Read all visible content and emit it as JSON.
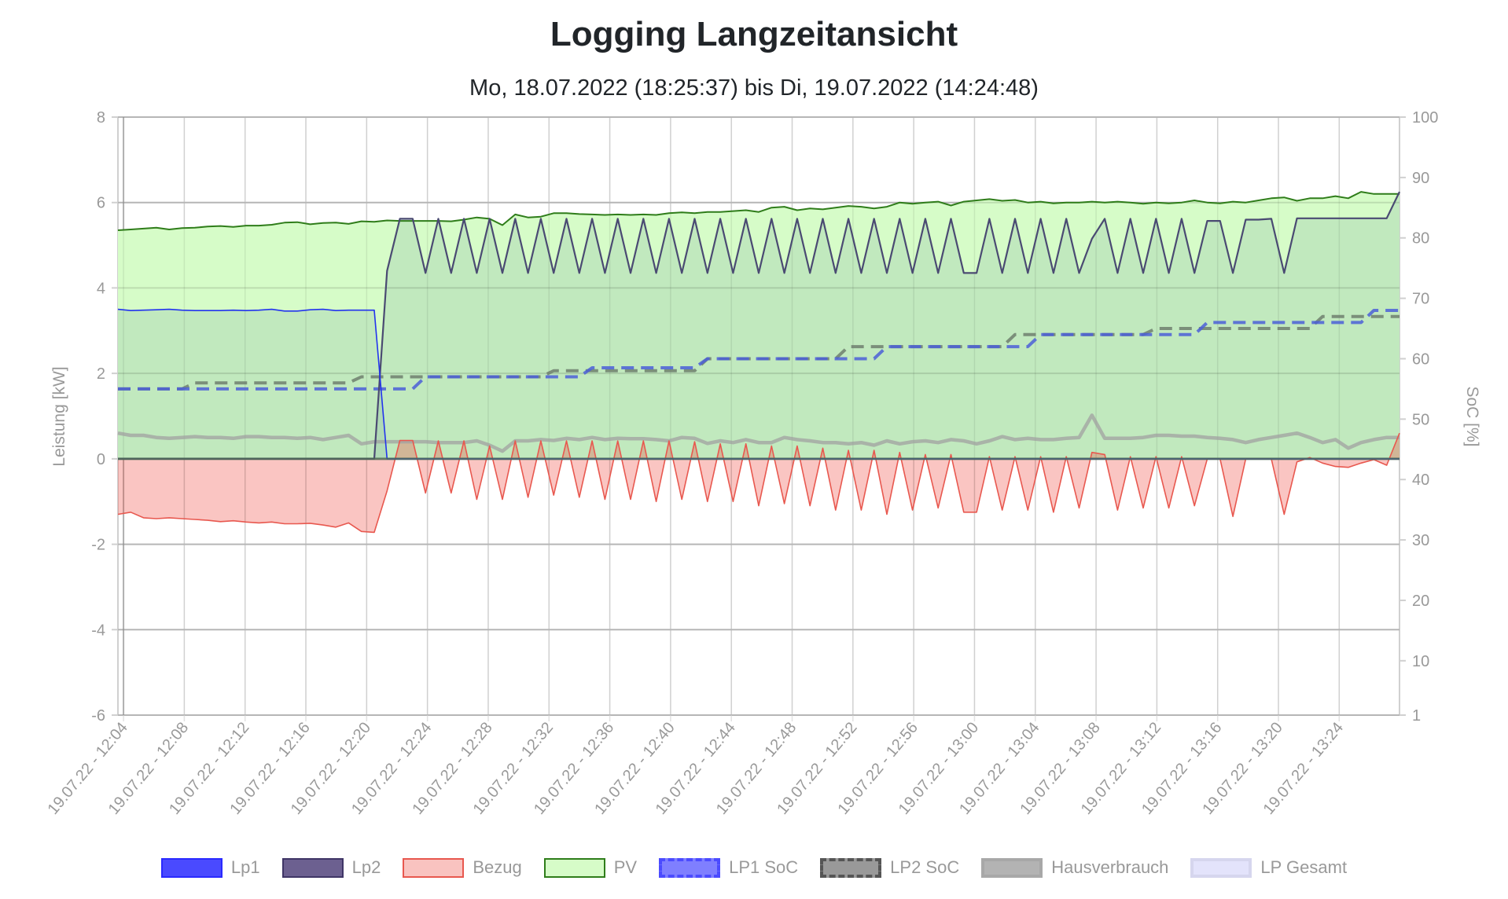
{
  "chart_data": {
    "type": "line",
    "title": "Logging Langzeitansicht",
    "subtitle": "Mo, 18.07.2022 (18:25:37) bis Di, 19.07.2022 (14:24:48)",
    "ylabel_left": "Leistung [kW]",
    "ylabel_right": "SoC [%]",
    "ylim_left": [
      -6,
      8
    ],
    "ylim_right": [
      1,
      100
    ],
    "yticks_left": [
      "8",
      "6",
      "4",
      "2",
      "0",
      "-2",
      "-4",
      "-6"
    ],
    "yticks_right": [
      "100",
      "90",
      "80",
      "70",
      "60",
      "50",
      "40",
      "30",
      "20",
      "10",
      "1"
    ],
    "x_start": "12:03:38",
    "interval_seconds": 50.6,
    "xticks": [
      {
        "time": "12:04",
        "label": "19.07.22 - 12:04"
      },
      {
        "time": "12:08",
        "label": "19.07.22 - 12:08"
      },
      {
        "time": "12:12",
        "label": "19.07.22 - 12:12"
      },
      {
        "time": "12:16",
        "label": "19.07.22 - 12:16"
      },
      {
        "time": "12:20",
        "label": "19.07.22 - 12:20"
      },
      {
        "time": "12:24",
        "label": "19.07.22 - 12:24"
      },
      {
        "time": "12:28",
        "label": "19.07.22 - 12:28"
      },
      {
        "time": "12:32",
        "label": "19.07.22 - 12:32"
      },
      {
        "time": "12:36",
        "label": "19.07.22 - 12:36"
      },
      {
        "time": "12:40",
        "label": "19.07.22 - 12:40"
      },
      {
        "time": "12:44",
        "label": "19.07.22 - 12:44"
      },
      {
        "time": "12:48",
        "label": "19.07.22 - 12:48"
      },
      {
        "time": "12:52",
        "label": "19.07.22 - 12:52"
      },
      {
        "time": "12:56",
        "label": "19.07.22 - 12:56"
      },
      {
        "time": "13:00",
        "label": "19.07.22 - 13:00"
      },
      {
        "time": "13:04",
        "label": "19.07.22 - 13:04"
      },
      {
        "time": "13:08",
        "label": "19.07.22 - 13:08"
      },
      {
        "time": "13:12",
        "label": "19.07.22 - 13:12"
      },
      {
        "time": "13:16",
        "label": "19.07.22 - 13:16"
      },
      {
        "time": "13:20",
        "label": "19.07.22 - 13:20"
      },
      {
        "time": "13:24",
        "label": "19.07.22 - 13:24"
      }
    ],
    "grid": true,
    "legend_position": "bottom",
    "series": [
      {
        "name": "Lp1",
        "axis": "left",
        "color": "#2233ee",
        "legend_fill": "#4a4aff",
        "legend_border": "#2a2aff",
        "values": [
          3.5,
          3.47,
          3.48,
          3.49,
          3.5,
          3.48,
          3.47,
          3.47,
          3.47,
          3.48,
          3.47,
          3.48,
          3.5,
          3.46,
          3.46,
          3.49,
          3.5,
          3.47,
          3.48,
          3.48,
          3.48,
          0,
          0,
          0,
          0,
          0,
          0,
          0,
          0,
          0,
          0,
          0,
          0,
          0,
          0,
          0,
          0,
          0,
          0,
          0,
          0,
          0,
          0,
          0,
          0,
          0,
          0,
          0,
          0,
          0,
          0,
          0,
          0,
          0,
          0,
          0,
          0,
          0,
          0,
          0,
          0,
          0,
          0,
          0,
          0,
          0,
          0,
          0,
          0,
          0,
          0,
          0,
          0,
          0,
          0,
          0,
          0,
          0,
          0,
          0,
          0,
          0,
          0,
          0,
          0,
          0,
          0,
          0,
          0,
          0,
          0,
          0,
          0,
          0,
          0,
          0,
          0,
          0,
          0,
          0,
          0
        ]
      },
      {
        "name": "Lp2",
        "axis": "left",
        "color": "#4a4a72",
        "legend_fill": "#6c6090",
        "legend_border": "#3f3566",
        "values": [
          0,
          0,
          0,
          0,
          0,
          0,
          0,
          0,
          0,
          0,
          0,
          0,
          0,
          0,
          0,
          0,
          0,
          0,
          0,
          0,
          0,
          4.4,
          5.62,
          5.62,
          4.35,
          5.62,
          4.35,
          5.62,
          4.35,
          5.62,
          4.35,
          5.62,
          4.35,
          5.62,
          4.35,
          5.62,
          4.35,
          5.62,
          4.35,
          5.62,
          4.35,
          5.62,
          4.35,
          5.62,
          4.35,
          5.62,
          4.35,
          5.62,
          4.35,
          5.62,
          4.35,
          5.62,
          4.35,
          5.62,
          4.35,
          5.62,
          4.35,
          5.62,
          4.35,
          5.62,
          4.35,
          5.62,
          4.35,
          5.62,
          4.35,
          5.62,
          4.35,
          4.35,
          5.62,
          4.35,
          5.62,
          4.35,
          5.62,
          4.35,
          5.62,
          4.35,
          5.15,
          5.62,
          4.35,
          5.62,
          4.35,
          5.62,
          4.35,
          5.62,
          4.35,
          5.57,
          5.57,
          4.35,
          5.6,
          5.6,
          5.62,
          4.35,
          5.63,
          5.63,
          5.63,
          5.63,
          5.63,
          5.63,
          5.63,
          5.63,
          6.25
        ]
      },
      {
        "name": "Bezug",
        "axis": "left",
        "color": "#e8584f",
        "legend_fill": "#f9c3c0",
        "legend_border": "#e8584f",
        "values": [
          -1.3,
          -1.25,
          -1.38,
          -1.4,
          -1.38,
          -1.4,
          -1.42,
          -1.44,
          -1.47,
          -1.45,
          -1.48,
          -1.5,
          -1.48,
          -1.52,
          -1.52,
          -1.51,
          -1.55,
          -1.6,
          -1.5,
          -1.7,
          -1.72,
          -0.75,
          0.43,
          0.43,
          -0.8,
          0.42,
          -0.8,
          0.42,
          -0.95,
          0.3,
          -0.95,
          0.42,
          -0.9,
          0.42,
          -0.85,
          0.42,
          -0.9,
          0.42,
          -0.95,
          0.42,
          -0.95,
          0.42,
          -1.0,
          0.42,
          -0.95,
          0.4,
          -1.0,
          0.35,
          -1.0,
          0.35,
          -1.1,
          0.3,
          -1.05,
          0.3,
          -1.1,
          0.25,
          -1.2,
          0.2,
          -1.2,
          0.2,
          -1.3,
          0.15,
          -1.2,
          0.1,
          -1.15,
          0.1,
          -1.25,
          -1.25,
          0.05,
          -1.2,
          0.05,
          -1.2,
          0.05,
          -1.25,
          0.05,
          -1.15,
          0.15,
          0.1,
          -1.2,
          0.05,
          -1.15,
          0.05,
          -1.15,
          0.05,
          -1.1,
          0,
          0,
          -1.35,
          0,
          0,
          0,
          -1.3,
          -0.07,
          0.03,
          -0.1,
          -0.18,
          -0.2,
          -0.1,
          -0.02,
          -0.15,
          0.6
        ]
      },
      {
        "name": "PV",
        "axis": "left",
        "color": "#2f7d1a",
        "legend_fill": "#d6fcc8",
        "legend_border": "#2f7d1a",
        "values": [
          5.35,
          5.37,
          5.39,
          5.41,
          5.37,
          5.4,
          5.41,
          5.44,
          5.45,
          5.43,
          5.46,
          5.46,
          5.48,
          5.53,
          5.54,
          5.49,
          5.52,
          5.53,
          5.5,
          5.56,
          5.55,
          5.58,
          5.57,
          5.57,
          5.57,
          5.57,
          5.56,
          5.6,
          5.65,
          5.62,
          5.47,
          5.72,
          5.65,
          5.67,
          5.75,
          5.75,
          5.73,
          5.72,
          5.71,
          5.72,
          5.71,
          5.72,
          5.71,
          5.75,
          5.77,
          5.75,
          5.78,
          5.78,
          5.8,
          5.82,
          5.78,
          5.88,
          5.9,
          5.82,
          5.86,
          5.84,
          5.88,
          5.92,
          5.9,
          5.86,
          5.9,
          6.0,
          5.97,
          6.0,
          6.02,
          5.93,
          6.02,
          6.05,
          6.08,
          6.04,
          6.06,
          6.0,
          6.02,
          5.98,
          6.0,
          6.0,
          6.02,
          6.0,
          6.02,
          6.0,
          5.97,
          6.0,
          5.98,
          6.0,
          6.05,
          6.0,
          5.98,
          6.02,
          6.0,
          6.05,
          6.1,
          6.12,
          6.04,
          6.1,
          6.1,
          6.15,
          6.1,
          6.25,
          6.2,
          6.2,
          6.2
        ]
      },
      {
        "name": "LP1 SoC",
        "axis": "right",
        "color": "#4b5fd8",
        "legend_fill": "#7f7fff",
        "legend_border": "#4b4bff",
        "steps": [
          {
            "from_index": 0,
            "value": 55
          },
          {
            "from_index": 24,
            "value": 57
          },
          {
            "from_index": 37,
            "value": 58.5
          },
          {
            "from_index": 46,
            "value": 60
          },
          {
            "from_index": 60,
            "value": 62
          },
          {
            "from_index": 72,
            "value": 64
          },
          {
            "from_index": 85,
            "value": 66
          },
          {
            "from_index": 98,
            "value": 68
          }
        ]
      },
      {
        "name": "LP2 SoC",
        "axis": "right",
        "color": "#6f7f6f",
        "legend_fill": "#999999",
        "legend_border": "#555555",
        "steps": [
          {
            "from_index": 0,
            "value": 55
          },
          {
            "from_index": 6,
            "value": 56
          },
          {
            "from_index": 19,
            "value": 57
          },
          {
            "from_index": 34,
            "value": 58
          },
          {
            "from_index": 46,
            "value": 60
          },
          {
            "from_index": 57,
            "value": 62
          },
          {
            "from_index": 70,
            "value": 64
          },
          {
            "from_index": 81,
            "value": 65
          },
          {
            "from_index": 94,
            "value": 67
          }
        ]
      },
      {
        "name": "Hausverbrauch",
        "axis": "left",
        "color": "#a0a0a0",
        "legend_fill": "#b3b3b3",
        "legend_border": "#a8a8a8",
        "values": [
          0.6,
          0.55,
          0.55,
          0.5,
          0.48,
          0.5,
          0.52,
          0.5,
          0.5,
          0.48,
          0.52,
          0.52,
          0.5,
          0.5,
          0.48,
          0.5,
          0.45,
          0.5,
          0.55,
          0.35,
          0.4,
          0.4,
          0.4,
          0.4,
          0.4,
          0.38,
          0.38,
          0.38,
          0.42,
          0.32,
          0.18,
          0.42,
          0.42,
          0.45,
          0.43,
          0.48,
          0.45,
          0.5,
          0.45,
          0.48,
          0.47,
          0.47,
          0.45,
          0.42,
          0.5,
          0.48,
          0.36,
          0.42,
          0.38,
          0.45,
          0.38,
          0.38,
          0.5,
          0.45,
          0.42,
          0.38,
          0.38,
          0.35,
          0.38,
          0.32,
          0.42,
          0.35,
          0.4,
          0.42,
          0.38,
          0.45,
          0.42,
          0.35,
          0.42,
          0.52,
          0.45,
          0.48,
          0.45,
          0.45,
          0.48,
          0.5,
          1.02,
          0.48,
          0.48,
          0.48,
          0.5,
          0.55,
          0.55,
          0.53,
          0.53,
          0.5,
          0.48,
          0.45,
          0.38,
          0.45,
          0.5,
          0.55,
          0.6,
          0.5,
          0.38,
          0.45,
          0.25,
          0.38,
          0.45,
          0.5,
          0.5
        ]
      },
      {
        "name": "LP Gesamt",
        "axis": "left",
        "color": "#e3e3fb",
        "legend_fill": "#e3e3fb",
        "legend_border": "#d6d6ee",
        "values": []
      }
    ]
  }
}
